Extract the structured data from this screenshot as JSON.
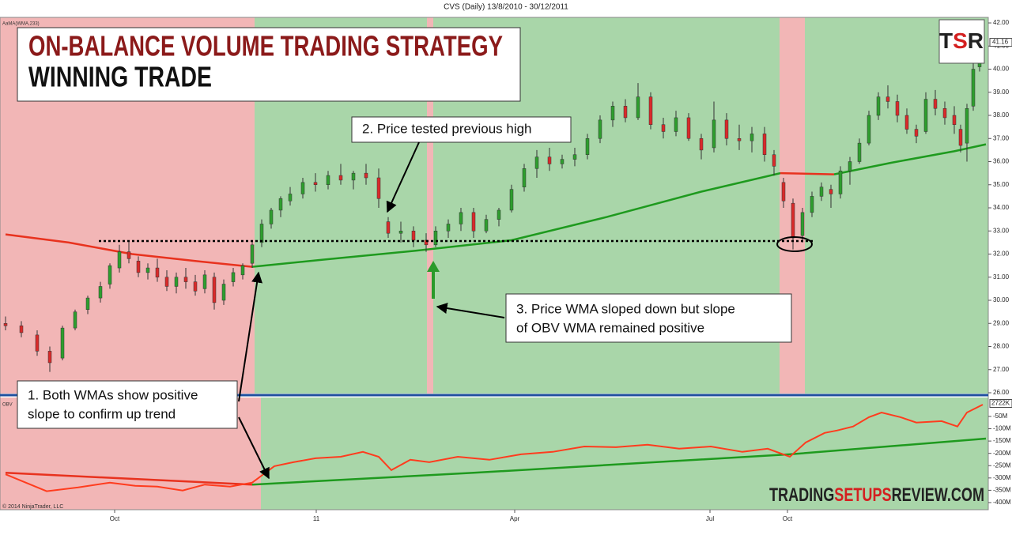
{
  "title": "CVS (Daily)  13/8/2010 - 30/12/2011",
  "banner": {
    "title": "ON-BALANCE VOLUME TRADING STRATEGY",
    "subtitle": "WINNING TRADE"
  },
  "logo": [
    "T",
    "S",
    "R"
  ],
  "watermark": [
    "TRADING",
    "SETUPS",
    "REVIEW.COM"
  ],
  "copyright": "© 2014 NinjaTrader, LLC",
  "annotations": [
    "2. Price tested previous high",
    "3. Price WMA sloped down but slope",
    "of OBV WMA remained positive",
    "1. Both WMAs show positive",
    "slope to confirm up trend"
  ],
  "chart_data": [
    {
      "type": "candlestick",
      "label": "AaMA(WMA,233)",
      "up_color": "#2e9e2e",
      "down_color": "#d92a2a",
      "xlim": [
        -1.75,
        310.75
      ],
      "ylim": [
        26,
        42.24
      ],
      "yticks": [
        {
          "value": 26,
          "label": "26.00"
        },
        {
          "value": 27,
          "label": "27.00"
        },
        {
          "value": 28,
          "label": "28.00"
        },
        {
          "value": 29,
          "label": "29.00"
        },
        {
          "value": 30,
          "label": "30.00"
        },
        {
          "value": 31,
          "label": "31.00"
        },
        {
          "value": 32,
          "label": "32.00"
        },
        {
          "value": 33,
          "label": "33.00"
        },
        {
          "value": 34,
          "label": "34.00"
        },
        {
          "value": 35,
          "label": "35.00"
        },
        {
          "value": 36,
          "label": "36.00"
        },
        {
          "value": 37,
          "label": "37.00"
        },
        {
          "value": 38,
          "label": "38.00"
        },
        {
          "value": 39,
          "label": "39.00"
        },
        {
          "value": 40,
          "label": "40.00"
        },
        {
          "value": 41,
          "label": "41.00"
        },
        {
          "value": 42,
          "label": "42.00"
        }
      ],
      "x": [
        0,
        5,
        10,
        14,
        18,
        22,
        26,
        30,
        33,
        36,
        39,
        42,
        45,
        48,
        51,
        54,
        57,
        60,
        63,
        66,
        69,
        72,
        75,
        78,
        81,
        84,
        87,
        90,
        94,
        98,
        102,
        106,
        110,
        114,
        118,
        121,
        125,
        129,
        133,
        136,
        140,
        144,
        148,
        152,
        156,
        160,
        164,
        168,
        172,
        176,
        180,
        184,
        188,
        192,
        196,
        200,
        204,
        208,
        212,
        216,
        220,
        224,
        228,
        232,
        236,
        240,
        243,
        246,
        249,
        252,
        255,
        258,
        261,
        264,
        267,
        270,
        273,
        276,
        279,
        282,
        285,
        288,
        291,
        294,
        297,
        300,
        302,
        304,
        306,
        308
      ],
      "open": [
        29.0,
        28.9,
        28.5,
        27.8,
        27.5,
        28.8,
        29.6,
        30.1,
        30.7,
        31.4,
        32.1,
        31.7,
        31.2,
        31.4,
        31.0,
        30.6,
        31.0,
        30.8,
        30.5,
        31.0,
        30.0,
        30.8,
        31.1,
        31.6,
        32.5,
        33.3,
        33.9,
        34.3,
        34.6,
        35.1,
        35.0,
        35.4,
        35.2,
        35.5,
        35.3,
        33.4,
        32.9,
        33.0,
        32.6,
        32.4,
        33.0,
        33.3,
        33.8,
        33.0,
        33.5,
        33.9,
        34.9,
        35.7,
        36.2,
        35.9,
        36.1,
        36.3,
        37.0,
        37.8,
        38.4,
        37.9,
        38.8,
        37.6,
        37.3,
        37.9,
        37.0,
        36.6,
        37.8,
        37.0,
        36.9,
        37.2,
        36.3,
        35.1,
        34.2,
        32.8,
        33.8,
        34.5,
        34.8,
        34.6,
        35.6,
        36.0,
        36.8,
        38.0,
        38.8,
        38.6,
        38.0,
        37.4,
        37.3,
        38.7,
        38.3,
        38.0,
        37.4,
        36.8,
        38.4,
        40.1
      ],
      "high": [
        29.3,
        29.1,
        28.7,
        28.0,
        28.9,
        29.6,
        30.2,
        30.8,
        31.6,
        32.4,
        32.6,
        31.9,
        31.6,
        31.8,
        31.3,
        31.2,
        31.4,
        31.1,
        31.3,
        31.2,
        30.9,
        31.4,
        31.6,
        32.6,
        33.5,
        34.0,
        34.5,
        34.9,
        35.3,
        35.5,
        35.6,
        35.9,
        35.6,
        35.9,
        35.7,
        33.6,
        33.4,
        33.2,
        32.9,
        33.2,
        33.5,
        34.0,
        34.0,
        33.7,
        34.0,
        35.0,
        35.9,
        36.5,
        36.6,
        36.3,
        36.6,
        37.2,
        38.0,
        38.6,
        38.7,
        39.4,
        39.0,
        37.9,
        38.2,
        38.1,
        37.2,
        38.6,
        38.1,
        37.6,
        37.5,
        37.5,
        36.5,
        35.3,
        34.4,
        34.0,
        34.7,
        35.1,
        35.0,
        35.8,
        36.2,
        37.0,
        38.2,
        39.0,
        39.3,
        38.9,
        38.3,
        37.6,
        39.0,
        39.1,
        38.6,
        38.4,
        37.6,
        38.5,
        40.3,
        41.9
      ],
      "low": [
        28.7,
        28.4,
        27.6,
        26.9,
        27.4,
        28.7,
        29.4,
        29.9,
        30.5,
        31.2,
        31.6,
        31.0,
        30.9,
        30.8,
        30.4,
        30.3,
        30.5,
        30.2,
        30.3,
        29.6,
        29.8,
        30.6,
        30.9,
        31.4,
        32.3,
        33.1,
        33.6,
        34.1,
        34.4,
        34.7,
        34.8,
        35.0,
        34.8,
        35.0,
        34.0,
        32.7,
        32.5,
        32.3,
        32.1,
        32.3,
        32.7,
        33.0,
        32.7,
        32.9,
        33.2,
        33.8,
        34.7,
        35.3,
        35.6,
        35.7,
        35.8,
        36.1,
        36.8,
        37.5,
        37.7,
        37.8,
        37.4,
        37.0,
        37.1,
        36.9,
        36.1,
        36.4,
        36.7,
        36.5,
        36.4,
        36.0,
        35.4,
        34.0,
        32.2,
        32.5,
        33.6,
        34.3,
        34.0,
        34.4,
        35.0,
        35.9,
        36.7,
        37.8,
        38.3,
        37.7,
        37.2,
        36.8,
        37.2,
        38.0,
        37.6,
        37.2,
        36.4,
        36.0,
        38.2,
        39.9
      ],
      "close": [
        28.9,
        28.6,
        27.8,
        27.3,
        28.8,
        29.5,
        30.1,
        30.6,
        31.5,
        32.1,
        31.8,
        31.2,
        31.4,
        31.0,
        30.6,
        31.0,
        30.8,
        30.4,
        31.1,
        29.9,
        30.7,
        31.2,
        31.5,
        32.4,
        33.3,
        33.9,
        34.4,
        34.6,
        35.1,
        35.0,
        35.4,
        35.2,
        35.5,
        35.3,
        34.4,
        32.9,
        33.0,
        32.6,
        32.4,
        33.0,
        33.3,
        33.8,
        33.0,
        33.5,
        33.9,
        34.8,
        35.7,
        36.2,
        35.9,
        36.1,
        36.3,
        37.0,
        37.8,
        38.4,
        37.9,
        38.8,
        37.6,
        37.3,
        37.9,
        37.0,
        36.5,
        37.8,
        37.0,
        36.9,
        37.2,
        36.3,
        35.8,
        34.3,
        32.7,
        33.8,
        34.5,
        34.9,
        34.6,
        35.6,
        36.0,
        36.8,
        38.0,
        38.8,
        38.6,
        38.0,
        37.4,
        37.1,
        38.7,
        38.3,
        37.9,
        37.6,
        36.7,
        38.3,
        40.0,
        41.16
      ],
      "lines": [
        {
          "color": "#e8321e",
          "x": [
            0,
            20,
            40,
            60,
            78
          ],
          "values": [
            32.85,
            32.5,
            32.0,
            31.7,
            31.45
          ]
        },
        {
          "color": "#1e9a1e",
          "x": [
            78,
            100,
            130,
            160,
            190,
            220,
            245
          ],
          "values": [
            31.45,
            31.75,
            32.15,
            32.6,
            33.6,
            34.7,
            35.5
          ]
        },
        {
          "color": "#e8321e",
          "x": [
            245,
            262
          ],
          "values": [
            35.5,
            35.45
          ]
        },
        {
          "color": "#1e9a1e",
          "x": [
            262,
            280,
            300,
            310
          ],
          "values": [
            35.45,
            35.95,
            36.45,
            36.75
          ]
        }
      ]
    },
    {
      "type": "line",
      "label": "OBV",
      "xlim": [
        -1.75,
        310.75
      ],
      "xticks": [
        {
          "value": 34.5,
          "label": "Oct"
        },
        {
          "value": 98.25,
          "label": "11"
        },
        {
          "value": 161,
          "label": "Apr"
        },
        {
          "value": 222.75,
          "label": "Jul"
        },
        {
          "value": 247.25,
          "label": "Oct"
        }
      ],
      "ylim": [
        -429,
        20.5
      ],
      "yticks": [
        {
          "value": -50,
          "label": "-50M"
        },
        {
          "value": -100,
          "label": "-100M"
        },
        {
          "value": -150,
          "label": "-150M"
        },
        {
          "value": -200,
          "label": "-200M"
        },
        {
          "value": -250,
          "label": "-250M"
        },
        {
          "value": -300,
          "label": "-300M"
        },
        {
          "value": -350,
          "label": "-350M"
        },
        {
          "value": -400,
          "label": "-400M"
        }
      ],
      "last": {
        "value": 2.722,
        "label": "2722K"
      },
      "series": [
        {
          "color": "#ff3c1e",
          "x": [
            0,
            6,
            13,
            23,
            33,
            41,
            48,
            56,
            63,
            71,
            78,
            85,
            91,
            98,
            106,
            113,
            118,
            122,
            128,
            134,
            143,
            153,
            163,
            173,
            183,
            193,
            203,
            213,
            223,
            233,
            241,
            248,
            253,
            259,
            263,
            268,
            273,
            277,
            283,
            288,
            296,
            301,
            304,
            309
          ],
          "values": [
            -285,
            -317,
            -354,
            -338,
            -319,
            -332,
            -335,
            -351,
            -327,
            -335,
            -319,
            -252,
            -236,
            -220,
            -214,
            -194,
            -214,
            -268,
            -226,
            -236,
            -214,
            -226,
            -204,
            -194,
            -172,
            -175,
            -165,
            -181,
            -172,
            -194,
            -181,
            -214,
            -156,
            -117,
            -107,
            -91,
            -53,
            -34,
            -53,
            -75,
            -69,
            -91,
            -34,
            -2
          ]
        }
      ],
      "lines": [
        {
          "color": "#e8321e",
          "x": [
            0,
            78
          ],
          "values": [
            -279,
            -327
          ]
        },
        {
          "color": "#1e9a1e",
          "x": [
            78,
            148,
            248,
            310
          ],
          "values": [
            -327,
            -279,
            -204,
            -140
          ]
        }
      ]
    }
  ]
}
